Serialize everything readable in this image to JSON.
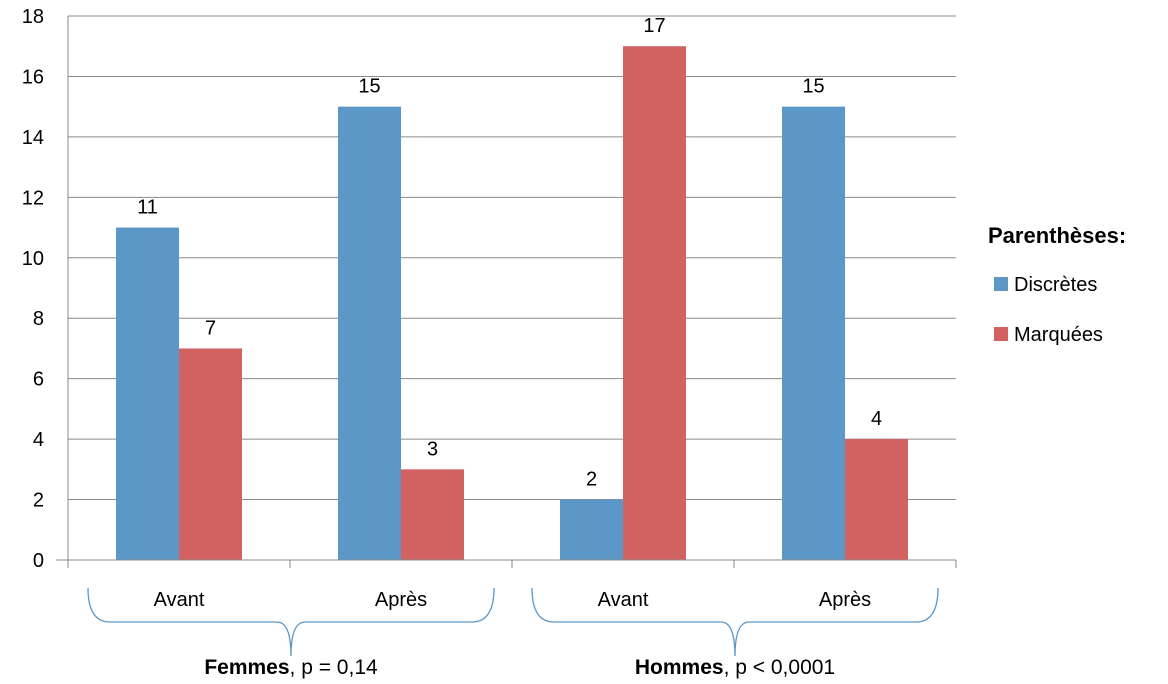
{
  "chart_data": {
    "type": "bar",
    "categories": [
      "Avant",
      "Après",
      "Avant",
      "Après"
    ],
    "series": [
      {
        "name": "Discrètes",
        "values": [
          11,
          15,
          2,
          15
        ],
        "color": "#5b97c7"
      },
      {
        "name": "Marquées",
        "values": [
          7,
          3,
          17,
          4
        ],
        "color": "#d26262"
      }
    ],
    "groups": [
      {
        "name": "Femmes",
        "stat": ", p = 0,14",
        "categories": [
          0,
          1
        ]
      },
      {
        "name": "Hommes",
        "stat": ", p < 0,0001",
        "categories": [
          2,
          3
        ]
      }
    ],
    "legend_title": "Parenthèses:",
    "legend_position": "right",
    "ylim": [
      0,
      18
    ],
    "yticks": [
      0,
      2,
      4,
      6,
      8,
      10,
      12,
      14,
      16,
      18
    ],
    "grid": true,
    "title": "",
    "xlabel": "",
    "ylabel": ""
  }
}
